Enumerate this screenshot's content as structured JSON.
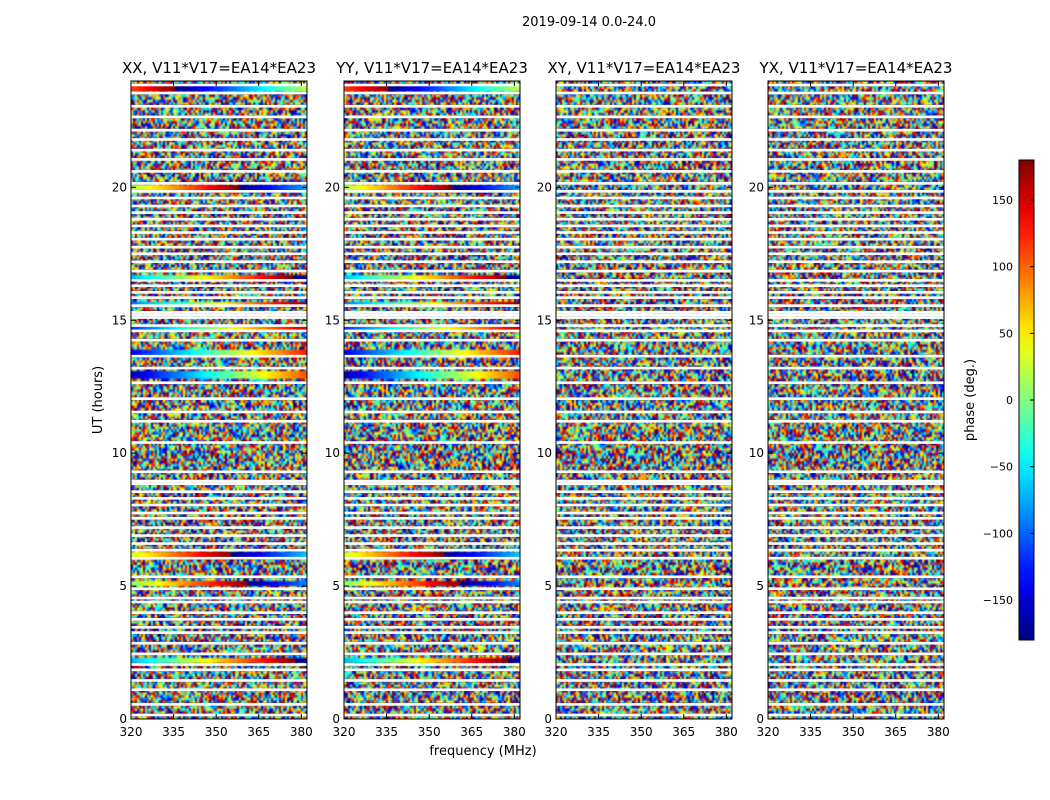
{
  "figure": {
    "suptitle": "2019-09-14 0.0-24.0",
    "xlabel": "frequency (MHz)",
    "ylabel": "UT (hours)",
    "colorbar_label": "phase (deg.)"
  },
  "chart_data": {
    "type": "heatmap",
    "colormap": "jet",
    "x_axis": {
      "label": "frequency (MHz)",
      "range": [
        320,
        382
      ],
      "ticks": [
        320,
        335,
        350,
        365,
        380
      ]
    },
    "y_axis": {
      "label": "UT (hours)",
      "range": [
        0,
        24
      ],
      "ticks": [
        0,
        5,
        10,
        15,
        20
      ]
    },
    "colorbar": {
      "label": "phase (deg.)",
      "range": [
        -180,
        180
      ],
      "ticks": [
        -150,
        -100,
        -50,
        0,
        50,
        100,
        150
      ]
    },
    "panels": [
      {
        "title": "XX, V11*V17=EA14*EA23"
      },
      {
        "title": "YY, V11*V17=EA14*EA23"
      },
      {
        "title": "XY, V11*V17=EA14*EA23"
      },
      {
        "title": "YX, V11*V17=EA14*EA23"
      }
    ],
    "flagged_hours": [
      0.15,
      0.55,
      1.1,
      1.45,
      1.85,
      2.05,
      2.45,
      2.85,
      3.25,
      3.45,
      3.75,
      4.0,
      4.4,
      4.55,
      4.9,
      5.35,
      6.05,
      6.35,
      6.6,
      6.9,
      7.2,
      7.55,
      7.75,
      8.05,
      8.3,
      8.55,
      8.85,
      8.95,
      9.3,
      10.4,
      11.2,
      11.55,
      12.05,
      12.65,
      13.2,
      13.65,
      14.25,
      14.6,
      14.8,
      15.1,
      15.2,
      15.3,
      15.55,
      15.85,
      16.05,
      16.3,
      16.5,
      16.85,
      17.2,
      17.5,
      17.75,
      18.05,
      18.3,
      18.55,
      18.8,
      19.05,
      19.3,
      19.6,
      19.85,
      20.15,
      20.6,
      21.05,
      21.4,
      21.8,
      22.15,
      22.65,
      23.05,
      23.55,
      23.85
    ],
    "coherent_rows": {
      "XX": [
        2.2,
        5.1,
        6.15,
        12.95,
        13.75,
        14.7,
        15.6,
        16.6,
        19.95,
        23.75
      ],
      "YY": [
        2.2,
        5.1,
        6.15,
        12.95,
        13.75,
        14.7,
        15.6,
        16.6,
        19.95,
        23.75
      ]
    }
  }
}
